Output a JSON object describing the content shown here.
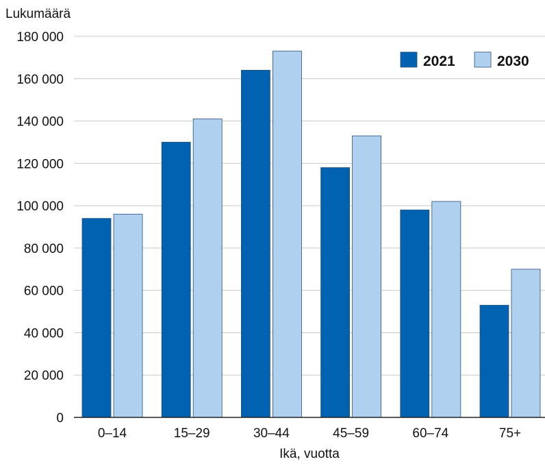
{
  "chart_data": {
    "type": "bar",
    "ylabel": "Lukumäärä",
    "xlabel": "Ikä, vuotta",
    "ylim": [
      0,
      180000
    ],
    "yticks": [
      0,
      20000,
      40000,
      60000,
      80000,
      100000,
      120000,
      140000,
      160000,
      180000
    ],
    "ytick_labels": [
      "0",
      "20 000",
      "40 000",
      "60 000",
      "80 000",
      "100 000",
      "120 000",
      "140 000",
      "160 000",
      "180 000"
    ],
    "categories": [
      "0–14",
      "15–29",
      "30–44",
      "45–59",
      "60–74",
      "75+"
    ],
    "series": [
      {
        "name": "2021",
        "color": "#0062b1",
        "values": [
          94000,
          130000,
          164000,
          118000,
          98000,
          53000
        ]
      },
      {
        "name": "2030",
        "color": "#b0d0ef",
        "values": [
          96000,
          141000,
          173000,
          133000,
          102000,
          70000
        ]
      }
    ],
    "grid": true,
    "legend_position": "top-right"
  }
}
